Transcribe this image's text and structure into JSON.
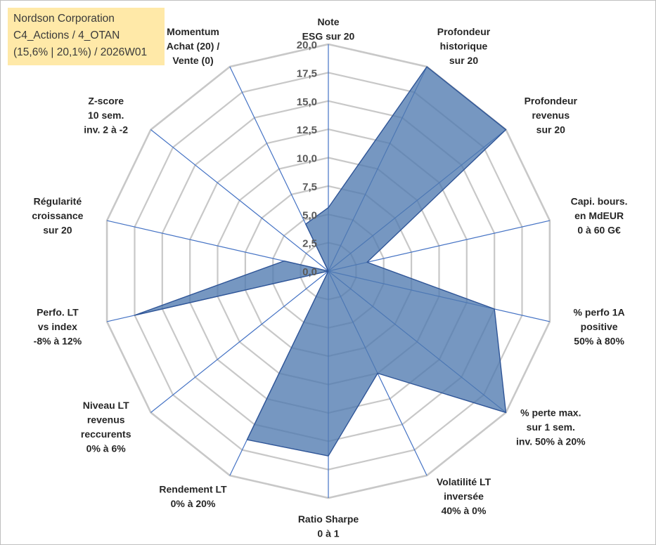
{
  "info_box": {
    "line1": "Nordson Corporation",
    "line2": "C4_Actions / 4_OTAN",
    "line3": "(15,6% | 20,1%) / 2026W01"
  },
  "colors": {
    "grid": "#c8c8c8",
    "spoke": "#4472c4",
    "fill": "#4f7aaf",
    "stroke": "#2f5597",
    "note_fill": "#ffe9a8"
  },
  "chart_data": {
    "type": "radar",
    "range": [
      0,
      20
    ],
    "tick_step": 2.5,
    "tick_labels": [
      "0,0",
      "2,5",
      "5,0",
      "7,5",
      "10,0",
      "12,5",
      "15,0",
      "17,5",
      "20,0"
    ],
    "axes": [
      {
        "label": [
          "Note",
          "ESG sur 20"
        ]
      },
      {
        "label": [
          "Profondeur",
          "historique",
          "sur 20"
        ]
      },
      {
        "label": [
          "Profondeur",
          "revenus",
          "sur 20"
        ]
      },
      {
        "label": [
          "Capi. bours.",
          "en MdEUR",
          "0 à 60 G€"
        ]
      },
      {
        "label": [
          "% perfo 1A",
          "positive",
          "50% à 80%"
        ]
      },
      {
        "label": [
          "% perte max.",
          "sur 1 sem.",
          "inv. 50% à 20%"
        ]
      },
      {
        "label": [
          "Volatilité LT",
          "inversée",
          "40% à 0%"
        ]
      },
      {
        "label": [
          "Ratio Sharpe",
          "0 à 1"
        ]
      },
      {
        "label": [
          "Rendement LT",
          "0% à 20%"
        ]
      },
      {
        "label": [
          "Niveau LT",
          "revenus",
          "reccurents",
          "0% à 6%"
        ]
      },
      {
        "label": [
          "Perfo. LT",
          "vs index",
          "-8% à 12%"
        ]
      },
      {
        "label": [
          "Régularité",
          "croissance",
          "sur 20"
        ]
      },
      {
        "label": [
          "Z-score",
          "10 sem.",
          "inv. 2 à -2"
        ]
      },
      {
        "label": [
          "Momentum",
          "Achat (20) /",
          "Vente (0)"
        ]
      }
    ],
    "values": [
      5.6,
      20,
      20,
      3.5,
      15,
      20,
      10,
      16.3,
      16.5,
      0,
      17.5,
      4,
      0,
      4.6
    ]
  }
}
